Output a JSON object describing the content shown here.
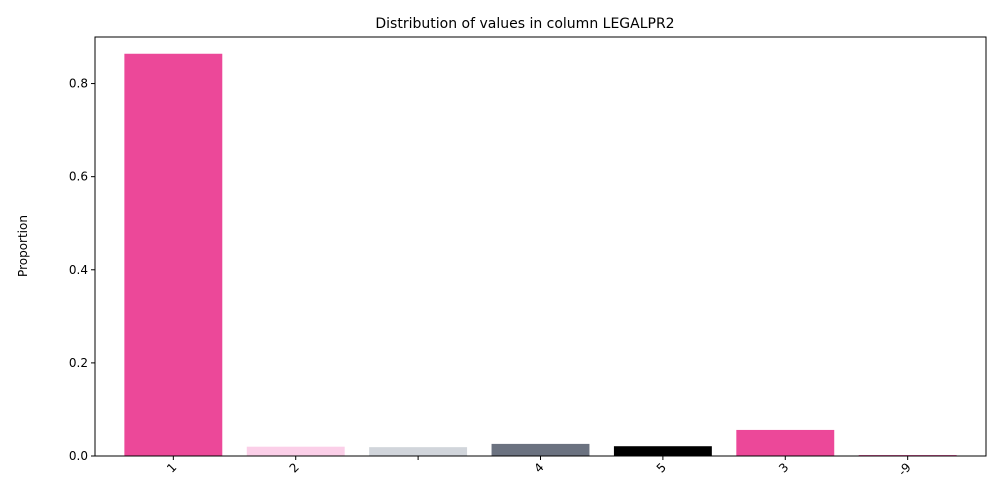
{
  "chart_data": {
    "type": "bar",
    "title": "Distribution of values in column LEGALPR2",
    "xlabel": "",
    "ylabel": "Proportion",
    "categories": [
      "1",
      "2",
      "",
      "4",
      "5",
      "3",
      "-9"
    ],
    "values": [
      0.864,
      0.02,
      0.019,
      0.026,
      0.021,
      0.056,
      0.002
    ],
    "colors": [
      "#ec4899",
      "#fbcfe8",
      "#d1d5db",
      "#6b7280",
      "#000000",
      "#ec4899",
      "#ec4899"
    ],
    "ylim": [
      0,
      0.9
    ],
    "yticks": [
      0.0,
      0.2,
      0.4,
      0.6,
      0.8
    ],
    "ytick_labels": [
      "0.0",
      "0.2",
      "0.4",
      "0.6",
      "0.8"
    ],
    "grid": false,
    "legend": "none"
  }
}
